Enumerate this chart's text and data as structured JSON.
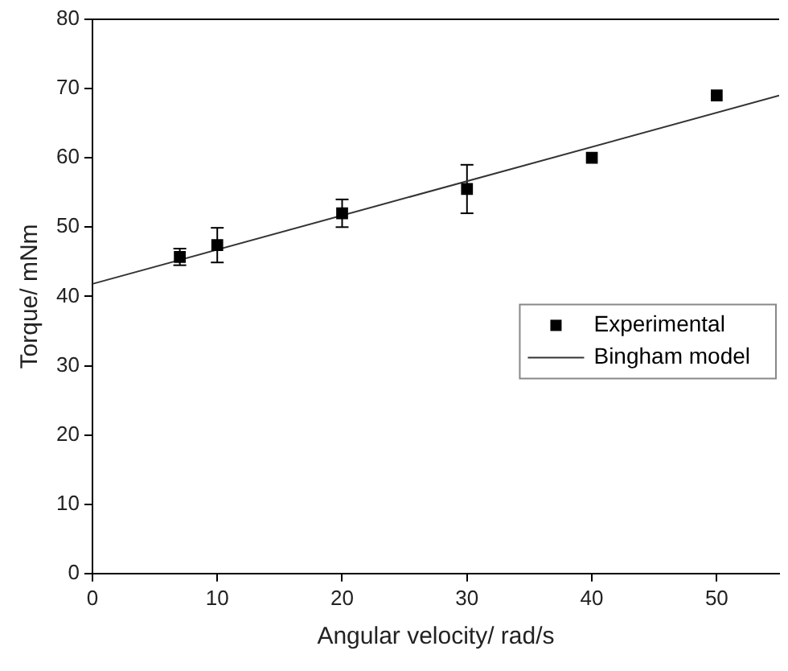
{
  "chart_data": {
    "type": "scatter",
    "xlabel": "Angular velocity/ rad/s",
    "ylabel": "Torque/ mNm",
    "xlim": [
      0,
      55
    ],
    "xticks": [
      0,
      10,
      20,
      30,
      40,
      50
    ],
    "ylim": [
      0,
      80
    ],
    "yticks": [
      0,
      10,
      20,
      30,
      40,
      50,
      60,
      70,
      80
    ],
    "grid": false,
    "legend": "right",
    "marker": "square",
    "series": [
      {
        "name": "Experimental",
        "color": "#000000",
        "x": [
          7,
          10,
          20,
          30,
          40,
          50
        ],
        "values": [
          45.7,
          47.4,
          52,
          55.5,
          60,
          69
        ],
        "errors": [
          1.2,
          2.5,
          2,
          3.5,
          null,
          null
        ]
      },
      {
        "name": "Bingham model",
        "type": "line",
        "color": "#333333",
        "line_style": "solid",
        "marker": "none",
        "x": [
          0,
          55
        ],
        "values": [
          41.8,
          69
        ]
      }
    ]
  }
}
